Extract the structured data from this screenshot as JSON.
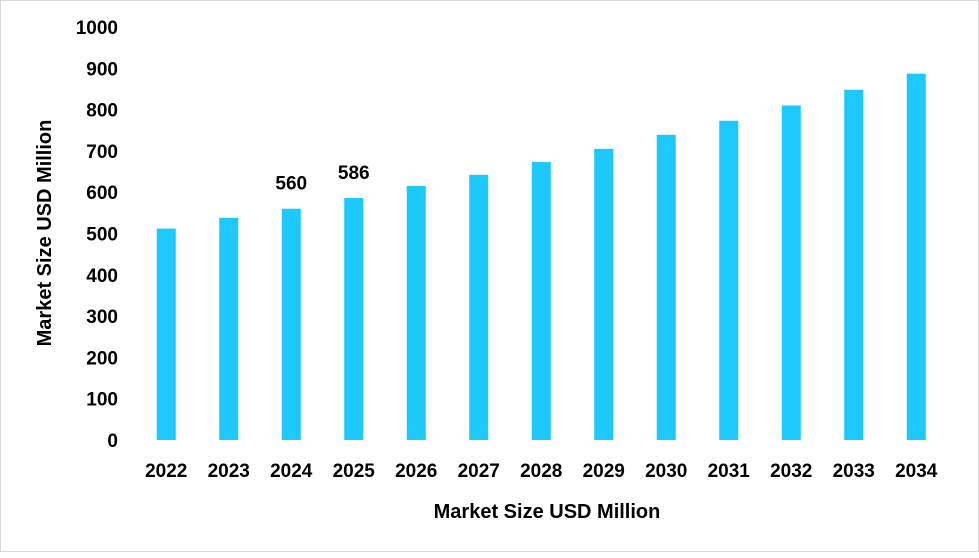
{
  "chart_data": {
    "type": "bar",
    "title": "",
    "xlabel": "Market Size USD Million",
    "ylabel": "Market Size USD Million",
    "categories": [
      "2022",
      "2023",
      "2024",
      "2025",
      "2026",
      "2027",
      "2028",
      "2029",
      "2030",
      "2031",
      "2032",
      "2033",
      "2034"
    ],
    "values": [
      512,
      538,
      560,
      586,
      615,
      642,
      673,
      705,
      739,
      773,
      810,
      848,
      887
    ],
    "data_labels": {
      "2024": "560",
      "2025": "586"
    },
    "ylim": [
      0,
      1000
    ],
    "yticks": [
      "0",
      "100",
      "200",
      "300",
      "400",
      "500",
      "600",
      "700",
      "800",
      "900",
      "1000"
    ],
    "grid": false,
    "bar_color": "#1cc8fc"
  }
}
